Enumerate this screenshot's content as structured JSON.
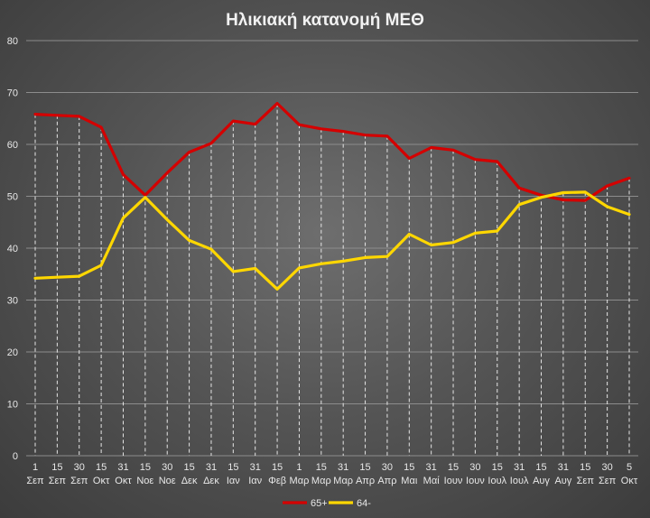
{
  "chart_data": {
    "type": "line",
    "title": "Ηλικιακή κατανομή ΜΕΘ",
    "xlabel": "",
    "ylabel": "",
    "ylim": [
      0,
      80
    ],
    "yticks": [
      "0",
      "10",
      "20",
      "30",
      "40",
      "50",
      "60",
      "70",
      "80"
    ],
    "grid": "horizontal lines, vertical dashed drop lines",
    "legend_position": "bottom",
    "categories": [
      {
        "day": "1",
        "month": "Σεπ"
      },
      {
        "day": "15",
        "month": "Σεπ"
      },
      {
        "day": "30",
        "month": "Σεπ"
      },
      {
        "day": "15",
        "month": "Οκτ"
      },
      {
        "day": "31",
        "month": "Οκτ"
      },
      {
        "day": "15",
        "month": "Νοε"
      },
      {
        "day": "30",
        "month": "Νοε"
      },
      {
        "day": "15",
        "month": "Δεκ"
      },
      {
        "day": "31",
        "month": "Δεκ"
      },
      {
        "day": "15",
        "month": "Ιαν"
      },
      {
        "day": "31",
        "month": "Ιαν"
      },
      {
        "day": "15",
        "month": "Φεβ"
      },
      {
        "day": "1",
        "month": "Μαρ"
      },
      {
        "day": "15",
        "month": "Μαρ"
      },
      {
        "day": "31",
        "month": "Μαρ"
      },
      {
        "day": "15",
        "month": "Απρ"
      },
      {
        "day": "30",
        "month": "Απρ"
      },
      {
        "day": "15",
        "month": "Μαι"
      },
      {
        "day": "31",
        "month": "Μαί"
      },
      {
        "day": "15",
        "month": "Ιουν"
      },
      {
        "day": "30",
        "month": "Ιουν"
      },
      {
        "day": "15",
        "month": "Ιουλ"
      },
      {
        "day": "31",
        "month": "Ιουλ"
      },
      {
        "day": "15",
        "month": "Αυγ"
      },
      {
        "day": "31",
        "month": "Αυγ"
      },
      {
        "day": "15",
        "month": "Σεπ"
      },
      {
        "day": "30",
        "month": "Σεπ"
      },
      {
        "day": "5",
        "month": "Οκτ"
      }
    ],
    "series": [
      {
        "name": "65+",
        "color": "#d40000",
        "values": [
          65.8,
          65.6,
          65.4,
          63.3,
          54.2,
          50.2,
          54.5,
          58.5,
          60.2,
          64.5,
          63.9,
          67.9,
          63.8,
          63.0,
          62.5,
          61.8,
          61.6,
          57.3,
          59.4,
          58.9,
          57.1,
          56.7,
          51.6,
          50.2,
          49.3,
          49.2,
          52.0,
          53.5
        ]
      },
      {
        "name": "64-",
        "color": "#ffd700",
        "values": [
          34.2,
          34.4,
          34.6,
          36.7,
          45.8,
          49.8,
          45.5,
          41.5,
          39.8,
          35.5,
          36.1,
          32.1,
          36.2,
          37.0,
          37.5,
          38.2,
          38.4,
          42.7,
          40.6,
          41.1,
          42.9,
          43.3,
          48.4,
          49.8,
          50.7,
          50.8,
          48.0,
          46.5
        ]
      }
    ]
  }
}
